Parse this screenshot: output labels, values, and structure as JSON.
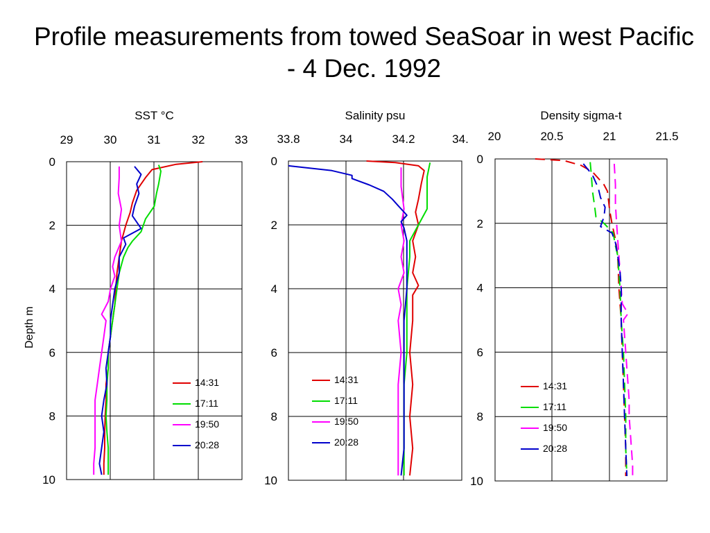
{
  "title": "Profile measurements from towed SeaSoar in west Pacific - 4 Dec. 1992",
  "colors": {
    "14:31": "#e00000",
    "17:11": "#00dd00",
    "19:50": "#ff00ff",
    "20:28": "#0000cc"
  },
  "chart_data": [
    {
      "type": "line",
      "title": "SST °C",
      "xlabel": "SST °C",
      "ylabel": "Depth m",
      "xlim": [
        29,
        33
      ],
      "ylim": [
        0,
        10
      ],
      "y_inverted": true,
      "x_ticks": [
        "29",
        "30",
        "31",
        "32",
        "33"
      ],
      "y_ticks": [
        "0",
        "2",
        "4",
        "6",
        "8",
        "10"
      ],
      "grid": true,
      "legend": "bottom-right",
      "series": [
        {
          "name": "14:31",
          "color": "#e00000",
          "dashed": false,
          "points": [
            [
              32.1,
              0
            ],
            [
              31.5,
              0.08
            ],
            [
              30.95,
              0.25
            ],
            [
              30.8,
              0.5
            ],
            [
              30.6,
              0.9
            ],
            [
              30.5,
              1.3
            ],
            [
              30.45,
              1.6
            ],
            [
              30.35,
              2.0
            ],
            [
              30.25,
              2.5
            ],
            [
              30.2,
              3.0
            ],
            [
              30.15,
              3.5
            ],
            [
              30.12,
              4.0
            ],
            [
              30.1,
              4.5
            ],
            [
              30.05,
              5.0
            ],
            [
              30.0,
              5.5
            ],
            [
              29.95,
              6.0
            ],
            [
              29.95,
              6.5
            ],
            [
              29.9,
              7.0
            ],
            [
              29.9,
              7.5
            ],
            [
              29.88,
              8.0
            ],
            [
              29.87,
              8.5
            ],
            [
              29.87,
              9.0
            ],
            [
              29.85,
              9.5
            ],
            [
              29.85,
              9.85
            ]
          ]
        },
        {
          "name": "17:11",
          "color": "#00dd00",
          "dashed": false,
          "points": [
            [
              31.1,
              0.1
            ],
            [
              31.15,
              0.3
            ],
            [
              31.1,
              0.7
            ],
            [
              31.05,
              1.0
            ],
            [
              31.0,
              1.4
            ],
            [
              30.8,
              1.8
            ],
            [
              30.7,
              2.2
            ],
            [
              30.5,
              2.5
            ],
            [
              30.4,
              2.7
            ],
            [
              30.3,
              3.0
            ],
            [
              30.2,
              3.5
            ],
            [
              30.15,
              4.0
            ],
            [
              30.1,
              4.5
            ],
            [
              30.05,
              5.0
            ],
            [
              30.0,
              5.5
            ],
            [
              29.95,
              6.0
            ],
            [
              29.95,
              6.5
            ],
            [
              29.92,
              7.0
            ],
            [
              29.92,
              7.5
            ],
            [
              29.9,
              8.0
            ],
            [
              29.92,
              8.5
            ],
            [
              29.95,
              9.0
            ],
            [
              29.95,
              9.5
            ],
            [
              29.95,
              9.85
            ]
          ]
        },
        {
          "name": "19:50",
          "color": "#ff00ff",
          "dashed": false,
          "points": [
            [
              30.2,
              0.15
            ],
            [
              30.2,
              0.5
            ],
            [
              30.18,
              1.0
            ],
            [
              30.25,
              1.5
            ],
            [
              30.2,
              2.0
            ],
            [
              30.25,
              2.5
            ],
            [
              30.1,
              3.0
            ],
            [
              30.05,
              3.3
            ],
            [
              30.1,
              3.6
            ],
            [
              30.0,
              4.0
            ],
            [
              29.95,
              4.4
            ],
            [
              29.8,
              4.8
            ],
            [
              29.9,
              5.0
            ],
            [
              29.85,
              5.5
            ],
            [
              29.8,
              6.0
            ],
            [
              29.75,
              6.5
            ],
            [
              29.7,
              7.0
            ],
            [
              29.65,
              7.5
            ],
            [
              29.65,
              8.0
            ],
            [
              29.65,
              8.5
            ],
            [
              29.65,
              9.0
            ],
            [
              29.62,
              9.5
            ],
            [
              29.62,
              9.85
            ]
          ]
        },
        {
          "name": "20:28",
          "color": "#0000cc",
          "dashed": false,
          "points": [
            [
              30.55,
              0.15
            ],
            [
              30.7,
              0.4
            ],
            [
              30.6,
              0.7
            ],
            [
              30.65,
              1.0
            ],
            [
              30.55,
              1.4
            ],
            [
              30.5,
              1.7
            ],
            [
              30.7,
              2.1
            ],
            [
              30.3,
              2.4
            ],
            [
              30.35,
              2.6
            ],
            [
              30.2,
              3.0
            ],
            [
              30.2,
              3.5
            ],
            [
              30.1,
              4.0
            ],
            [
              30.05,
              4.5
            ],
            [
              30.0,
              5.0
            ],
            [
              30.0,
              5.5
            ],
            [
              29.95,
              6.0
            ],
            [
              29.9,
              6.5
            ],
            [
              29.92,
              7.0
            ],
            [
              29.85,
              7.5
            ],
            [
              29.8,
              8.0
            ],
            [
              29.85,
              8.5
            ],
            [
              29.8,
              9.0
            ],
            [
              29.75,
              9.5
            ],
            [
              29.8,
              9.85
            ]
          ]
        }
      ]
    },
    {
      "type": "line",
      "title": "Salinity psu",
      "xlabel": "Salinity psu",
      "xlim": [
        33.8,
        34.4
      ],
      "ylim": [
        0,
        10
      ],
      "y_inverted": true,
      "x_ticks": [
        "33.8",
        "34",
        "34.2",
        "34."
      ],
      "y_ticks": [
        "0",
        "2",
        "4",
        "6",
        "8",
        "10"
      ],
      "grid": true,
      "legend": "bottom-right",
      "series": [
        {
          "name": "14:31",
          "color": "#e00000",
          "dashed": false,
          "points": [
            [
              34.07,
              0
            ],
            [
              34.17,
              0.05
            ],
            [
              34.25,
              0.15
            ],
            [
              34.27,
              0.3
            ],
            [
              34.26,
              0.7
            ],
            [
              34.25,
              1.2
            ],
            [
              34.24,
              1.6
            ],
            [
              34.25,
              2.0
            ],
            [
              34.23,
              2.5
            ],
            [
              34.24,
              3.0
            ],
            [
              34.23,
              3.5
            ],
            [
              34.25,
              3.9
            ],
            [
              34.23,
              4.2
            ],
            [
              34.23,
              5.0
            ],
            [
              34.22,
              6.0
            ],
            [
              34.23,
              7.0
            ],
            [
              34.22,
              8.0
            ],
            [
              34.23,
              9.0
            ],
            [
              34.22,
              9.85
            ]
          ]
        },
        {
          "name": "17:11",
          "color": "#00dd00",
          "dashed": false,
          "points": [
            [
              34.29,
              0.05
            ],
            [
              34.28,
              0.5
            ],
            [
              34.28,
              1.0
            ],
            [
              34.28,
              1.5
            ],
            [
              34.25,
              2.0
            ],
            [
              34.22,
              2.5
            ],
            [
              34.22,
              3.0
            ],
            [
              34.21,
              4.0
            ],
            [
              34.21,
              5.0
            ],
            [
              34.21,
              6.0
            ],
            [
              34.2,
              7.0
            ],
            [
              34.2,
              8.0
            ],
            [
              34.2,
              9.0
            ],
            [
              34.2,
              9.85
            ]
          ]
        },
        {
          "name": "19:50",
          "color": "#ff00ff",
          "dashed": false,
          "points": [
            [
              34.19,
              0.2
            ],
            [
              34.19,
              0.8
            ],
            [
              34.2,
              1.5
            ],
            [
              34.19,
              2.0
            ],
            [
              34.2,
              2.5
            ],
            [
              34.19,
              3.0
            ],
            [
              34.2,
              3.5
            ],
            [
              34.18,
              4.0
            ],
            [
              34.19,
              4.5
            ],
            [
              34.18,
              5.0
            ],
            [
              34.19,
              6.0
            ],
            [
              34.18,
              7.0
            ],
            [
              34.18,
              8.0
            ],
            [
              34.18,
              9.0
            ],
            [
              34.18,
              9.85
            ]
          ]
        },
        {
          "name": "20:28",
          "color": "#0000cc",
          "dashed": false,
          "points": [
            [
              33.8,
              0.15
            ],
            [
              33.95,
              0.3
            ],
            [
              34.02,
              0.45
            ],
            [
              34.02,
              0.55
            ],
            [
              34.08,
              0.75
            ],
            [
              34.13,
              0.95
            ],
            [
              34.16,
              1.2
            ],
            [
              34.18,
              1.4
            ],
            [
              34.2,
              1.6
            ],
            [
              34.21,
              1.7
            ],
            [
              34.19,
              1.9
            ],
            [
              34.2,
              2.1
            ],
            [
              34.21,
              2.5
            ],
            [
              34.21,
              3.0
            ],
            [
              34.21,
              4.0
            ],
            [
              34.2,
              5.0
            ],
            [
              34.2,
              6.0
            ],
            [
              34.2,
              7.0
            ],
            [
              34.2,
              8.0
            ],
            [
              34.2,
              9.0
            ],
            [
              34.19,
              9.85
            ]
          ]
        }
      ]
    },
    {
      "type": "line",
      "title": "Density sigma-t",
      "xlabel": "Density sigma-t",
      "xlim": [
        20,
        21.5
      ],
      "ylim": [
        0,
        10
      ],
      "y_inverted": true,
      "x_ticks": [
        "20",
        "20.5",
        "21",
        "21.5"
      ],
      "y_ticks": [
        "0",
        "2",
        "4",
        "6",
        "8",
        "10"
      ],
      "grid": true,
      "legend": "bottom-right",
      "series": [
        {
          "name": "14:31",
          "color": "#e00000",
          "dashed": true,
          "points": [
            [
              20.35,
              0
            ],
            [
              20.6,
              0.05
            ],
            [
              20.75,
              0.2
            ],
            [
              20.85,
              0.4
            ],
            [
              20.9,
              0.6
            ],
            [
              20.95,
              0.8
            ],
            [
              20.98,
              1.0
            ],
            [
              20.99,
              1.3
            ],
            [
              21.0,
              1.6
            ],
            [
              21.02,
              2.0
            ],
            [
              21.05,
              2.5
            ],
            [
              21.07,
              3.0
            ],
            [
              21.08,
              4.0
            ],
            [
              21.1,
              5.0
            ],
            [
              21.11,
              6.0
            ],
            [
              21.12,
              7.0
            ],
            [
              21.13,
              8.0
            ],
            [
              21.14,
              9.0
            ],
            [
              21.14,
              9.85
            ]
          ]
        },
        {
          "name": "17:11",
          "color": "#00dd00",
          "dashed": true,
          "points": [
            [
              20.83,
              0.1
            ],
            [
              20.84,
              0.5
            ],
            [
              20.85,
              1.0
            ],
            [
              20.87,
              1.5
            ],
            [
              20.88,
              1.8
            ],
            [
              20.95,
              2.0
            ],
            [
              21.03,
              2.3
            ],
            [
              21.05,
              2.7
            ],
            [
              21.07,
              3.0
            ],
            [
              21.09,
              4.0
            ],
            [
              21.1,
              5.0
            ],
            [
              21.12,
              6.0
            ],
            [
              21.13,
              7.0
            ],
            [
              21.14,
              8.0
            ],
            [
              21.14,
              9.0
            ],
            [
              21.15,
              9.85
            ]
          ]
        },
        {
          "name": "19:50",
          "color": "#ff00ff",
          "dashed": true,
          "points": [
            [
              21.04,
              0.15
            ],
            [
              21.05,
              0.8
            ],
            [
              21.05,
              1.4
            ],
            [
              21.06,
              2.0
            ],
            [
              21.07,
              2.5
            ],
            [
              21.08,
              3.0
            ],
            [
              21.09,
              3.5
            ],
            [
              21.1,
              4.0
            ],
            [
              21.11,
              4.5
            ],
            [
              21.16,
              4.8
            ],
            [
              21.12,
              5.0
            ],
            [
              21.13,
              5.5
            ],
            [
              21.14,
              6.0
            ],
            [
              21.15,
              6.5
            ],
            [
              21.16,
              7.0
            ],
            [
              21.17,
              7.5
            ],
            [
              21.17,
              8.0
            ],
            [
              21.18,
              8.5
            ],
            [
              21.19,
              9.0
            ],
            [
              21.2,
              9.5
            ],
            [
              21.2,
              9.85
            ]
          ]
        },
        {
          "name": "20:28",
          "color": "#0000cc",
          "dashed": true,
          "points": [
            [
              20.77,
              0.15
            ],
            [
              20.85,
              0.5
            ],
            [
              20.9,
              0.9
            ],
            [
              20.92,
              1.2
            ],
            [
              20.96,
              1.5
            ],
            [
              20.95,
              1.8
            ],
            [
              20.92,
              2.1
            ],
            [
              21.02,
              2.3
            ],
            [
              21.05,
              2.6
            ],
            [
              21.07,
              3.0
            ],
            [
              21.09,
              3.5
            ],
            [
              21.1,
              4.0
            ],
            [
              21.1,
              5.0
            ],
            [
              21.11,
              6.0
            ],
            [
              21.12,
              7.0
            ],
            [
              21.13,
              8.0
            ],
            [
              21.14,
              9.0
            ],
            [
              21.15,
              9.85
            ]
          ]
        }
      ]
    }
  ]
}
